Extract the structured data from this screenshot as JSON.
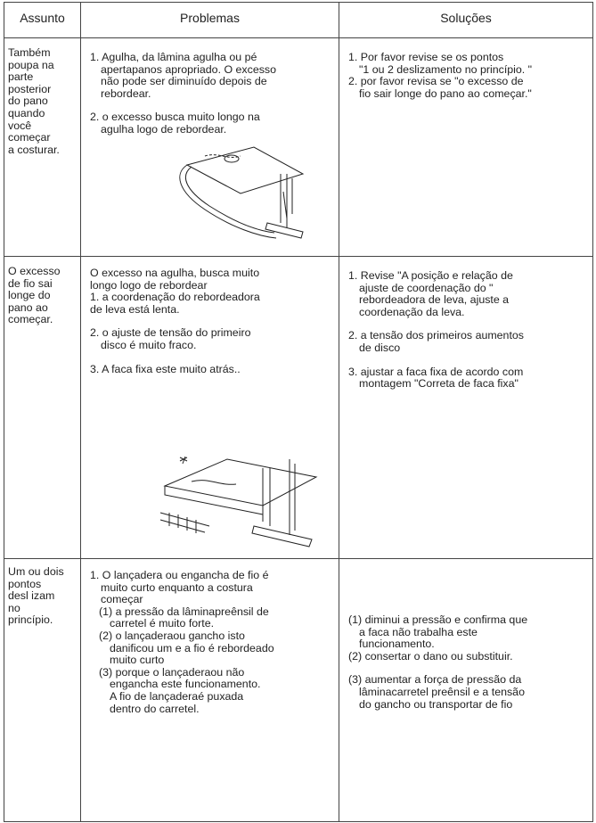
{
  "header": {
    "assunto": "Assunto",
    "problemas": "Problemas",
    "solucoes": "Soluções"
  },
  "rows": [
    {
      "assunto": [
        [
          "Também",
          "poupa na",
          "parte",
          "posterior",
          "do pano",
          "quando",
          "você",
          "começar",
          "a costurar."
        ]
      ],
      "problemas": [
        [
          "1. Agulha, da lâmina agulha ou pé",
          "apertapanos apropriado. O excesso",
          "não pode ser diminuído depois de",
          "rebordear."
        ],
        [
          "2. o excesso busca muito longo na",
          "agulha logo de rebordear."
        ]
      ],
      "solucoes": [
        [
          "1. Por favor revise se os pontos",
          "\"1 ou 2 deslizamento no princípio. \"",
          "2. por favor revisa se \"o excesso de",
          "fio sair longe do pano ao começar.\""
        ]
      ]
    },
    {
      "assunto": [
        [
          "O excesso",
          "de fio sai",
          "longe do",
          "pano ao",
          "começar."
        ]
      ],
      "problemas": [
        [
          "O excesso na agulha, busca muito",
          "longo logo de rebordear",
          "1. a coordenação do rebordeadora",
          "de leva está lenta."
        ],
        [
          "2. o ajuste de tensão do primeiro",
          "disco é muito fraco."
        ],
        [
          "3. A faca fixa este muito atrás.."
        ]
      ],
      "solucoes": [
        [
          "1. Revise \"A posição e relação de",
          "ajuste de coordenação do \"",
          "rebordeadora de leva, ajuste a",
          "coordenação da leva."
        ],
        [
          "2. a tensão dos primeiros aumentos",
          "de disco"
        ],
        [
          "3. ajustar a faca fixa de acordo com",
          "montagem \"Correta de faca fixa\""
        ]
      ]
    },
    {
      "assunto": [
        [
          "Um ou dois",
          "pontos",
          "desl izam",
          "no",
          "princípio."
        ]
      ],
      "problemas": [
        [
          "1. O lançadera ou engancha de fio é",
          "muito curto enquanto a costura",
          "começar",
          "(1) a pressão da lâminapreênsil de",
          "carretel é muito forte.",
          "(2) o lançaderaou gancho isto",
          "danificou um e a fio é rebordeado",
          "muito curto",
          "(3) porque o lançaderaou não",
          "engancha este funcionamento.",
          "A fio de lançaderaé puxada",
          "dentro do carretel."
        ]
      ],
      "solucoes": [
        [
          "(1) diminui a pressão e confirma que",
          "a faca não trabalha este",
          "funcionamento.",
          "(2)  consertar o dano ou substituir."
        ],
        [
          "(3) aumentar a força de pressão da",
          "lâminacarretel preênsil e a tensão",
          "do gancho ou transportar de fio"
        ]
      ]
    }
  ]
}
